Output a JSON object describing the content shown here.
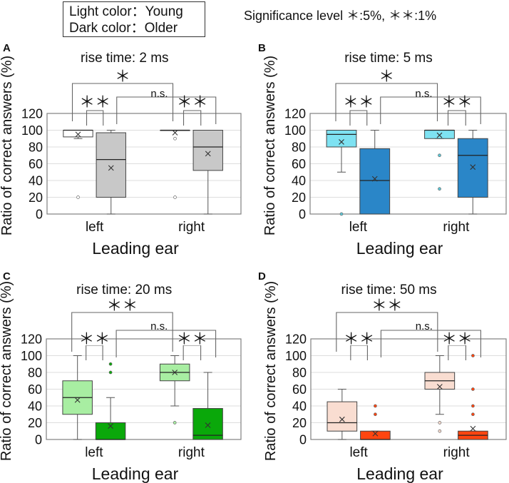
{
  "legend": {
    "line1": "Light color：Young",
    "line2": "Dark color：Older"
  },
  "significance_note": "Significance level ＊:5%, ＊＊:1%",
  "chart_data": [
    {
      "type": "box",
      "panel": "A",
      "title": "rise time: 2 ms",
      "xlabel": "Leading ear",
      "ylabel": "Ratio of correct answers (%)",
      "ylim": [
        0,
        120
      ],
      "yticks": [
        "0",
        "20",
        "40",
        "60",
        "80",
        "100",
        "120"
      ],
      "categories": [
        "left",
        "right"
      ],
      "grid": true,
      "series": [
        {
          "name": "Young",
          "fill": "#ffffff",
          "outlier_color": "#ffffff",
          "boxes": [
            {
              "x": "left",
              "min": 90,
              "q1": 92,
              "median": 100,
              "q3": 100,
              "max": 100,
              "mean": 95,
              "outliers": [
                20
              ]
            },
            {
              "x": "right",
              "min": 100,
              "q1": 100,
              "median": 100,
              "q3": 100,
              "max": 100,
              "mean": 97,
              "outliers": [
                90,
                20
              ]
            }
          ]
        },
        {
          "name": "Older",
          "fill": "#c8c8c8",
          "outlier_color": "#c8c8c8",
          "boxes": [
            {
              "x": "left",
              "min": 0,
              "q1": 20,
              "median": 65,
              "q3": 97,
              "max": 100,
              "mean": 55,
              "outliers": []
            },
            {
              "x": "right",
              "min": 0,
              "q1": 52,
              "median": 80,
              "q3": 100,
              "max": 100,
              "mean": 72,
              "outliers": []
            }
          ]
        }
      ],
      "annotations": {
        "young_left_vs_right": "＊",
        "older_left_vs_right": "n.s.",
        "left_young_vs_older": "＊＊",
        "right_young_vs_older": "＊＊"
      }
    },
    {
      "type": "box",
      "panel": "B",
      "title": "rise time: 5 ms",
      "xlabel": "Leading ear",
      "ylabel": "Ratio of correct answers (%)",
      "ylim": [
        0,
        120
      ],
      "yticks": [
        "0",
        "20",
        "40",
        "60",
        "80",
        "100",
        "120"
      ],
      "categories": [
        "left",
        "right"
      ],
      "grid": true,
      "series": [
        {
          "name": "Young",
          "fill": "#7ee2f2",
          "outlier_color": "#5cc8d8",
          "boxes": [
            {
              "x": "left",
              "min": 50,
              "q1": 80,
              "median": 95,
              "q3": 100,
              "max": 100,
              "mean": 86,
              "outliers": [
                0
              ]
            },
            {
              "x": "right",
              "min": 90,
              "q1": 90,
              "median": 100,
              "q3": 100,
              "max": 100,
              "mean": 94,
              "outliers": [
                70,
                30
              ]
            }
          ]
        },
        {
          "name": "Older",
          "fill": "#2a86c8",
          "outlier_color": "#2a86c8",
          "boxes": [
            {
              "x": "left",
              "min": 0,
              "q1": 0,
              "median": 40,
              "q3": 78,
              "max": 100,
              "mean": 42,
              "outliers": []
            },
            {
              "x": "right",
              "min": 0,
              "q1": 20,
              "median": 70,
              "q3": 90,
              "max": 100,
              "mean": 56,
              "outliers": []
            }
          ]
        }
      ],
      "annotations": {
        "young_left_vs_right": "＊",
        "older_left_vs_right": "n.s.",
        "left_young_vs_older": "＊＊",
        "right_young_vs_older": "＊＊"
      }
    },
    {
      "type": "box",
      "panel": "C",
      "title": "rise time: 20 ms",
      "xlabel": "Leading ear",
      "ylabel": "Ratio of correct answers (%)",
      "ylim": [
        0,
        120
      ],
      "yticks": [
        "0",
        "20",
        "40",
        "60",
        "80",
        "100",
        "120"
      ],
      "categories": [
        "left",
        "right"
      ],
      "grid": true,
      "series": [
        {
          "name": "Young",
          "fill": "#a8eea2",
          "outlier_color": "#a8eea2",
          "boxes": [
            {
              "x": "left",
              "min": 0,
              "q1": 30,
              "median": 50,
              "q3": 70,
              "max": 100,
              "mean": 47,
              "outliers": []
            },
            {
              "x": "right",
              "min": 40,
              "q1": 70,
              "median": 80,
              "q3": 90,
              "max": 100,
              "mean": 80,
              "outliers": [
                20
              ]
            }
          ]
        },
        {
          "name": "Older",
          "fill": "#0aa80a",
          "outlier_color": "#0aa80a",
          "boxes": [
            {
              "x": "left",
              "min": 0,
              "q1": 0,
              "median": 0,
              "q3": 20,
              "max": 50,
              "mean": 16,
              "outliers": [
                90,
                80
              ]
            },
            {
              "x": "right",
              "min": 0,
              "q1": 0,
              "median": 5,
              "q3": 37,
              "max": 80,
              "mean": 17,
              "outliers": []
            }
          ]
        }
      ],
      "annotations": {
        "young_left_vs_right": "＊＊",
        "older_left_vs_right": "n.s.",
        "left_young_vs_older": "＊＊",
        "right_young_vs_older": "＊＊"
      }
    },
    {
      "type": "box",
      "panel": "D",
      "title": "rise time: 50 ms",
      "xlabel": "Leading ear",
      "ylabel": "Ratio of correct answers (%)",
      "ylim": [
        0,
        120
      ],
      "yticks": [
        "0",
        "20",
        "40",
        "60",
        "80",
        "100",
        "120"
      ],
      "categories": [
        "left",
        "right"
      ],
      "grid": true,
      "series": [
        {
          "name": "Young",
          "fill": "#f9ddd1",
          "outlier_color": "#f9ddd1",
          "boxes": [
            {
              "x": "left",
              "min": 0,
              "q1": 10,
              "median": 20,
              "q3": 45,
              "max": 60,
              "mean": 24,
              "outliers": []
            },
            {
              "x": "right",
              "min": 30,
              "q1": 60,
              "median": 70,
              "q3": 80,
              "max": 100,
              "mean": 63,
              "outliers": [
                20,
                10
              ]
            }
          ]
        },
        {
          "name": "Older",
          "fill": "#ff4510",
          "outlier_color": "#ff4510",
          "boxes": [
            {
              "x": "left",
              "min": 0,
              "q1": 0,
              "median": 0,
              "q3": 10,
              "max": 10,
              "mean": 7,
              "outliers": [
                40,
                30
              ]
            },
            {
              "x": "right",
              "min": 0,
              "q1": 0,
              "median": 5,
              "q3": 10,
              "max": 10,
              "mean": 13,
              "outliers": [
                100,
                60,
                40,
                30
              ]
            }
          ]
        }
      ],
      "annotations": {
        "young_left_vs_right": "＊＊",
        "older_left_vs_right": "n.s.",
        "left_young_vs_older": "＊＊",
        "right_young_vs_older": "＊＊"
      }
    }
  ]
}
